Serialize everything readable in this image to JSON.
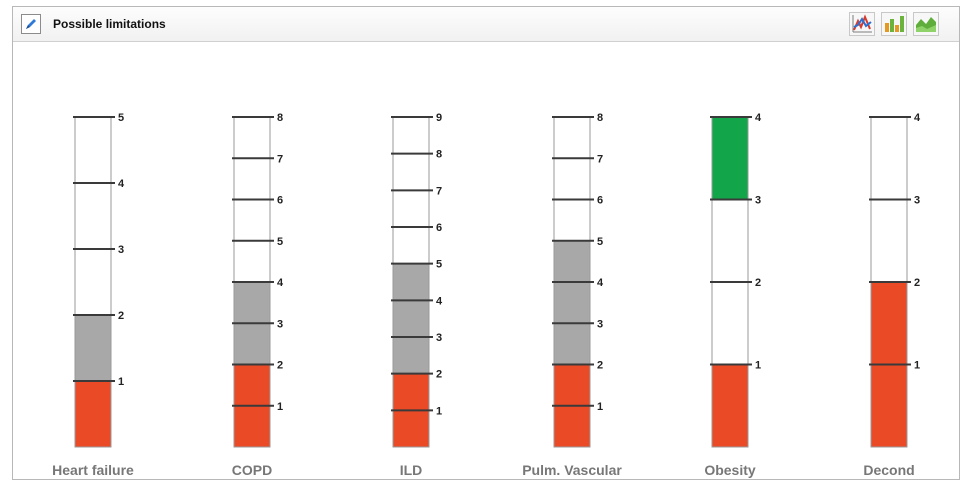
{
  "panel": {
    "title": "Possible limitations"
  },
  "toolbar": {
    "buttons": [
      {
        "name": "line-chart-button",
        "icon": "line-chart-icon"
      },
      {
        "name": "bar-chart-button",
        "icon": "bar-chart-icon"
      },
      {
        "name": "area-chart-button",
        "icon": "area-chart-icon"
      }
    ]
  },
  "colors": {
    "red": "#ea4b26",
    "gray": "#a8a8a8",
    "green": "#13a54a",
    "tick": "#3a3a3a",
    "outline": "#9a9a9a"
  },
  "chart_data": {
    "type": "bar",
    "categories": [
      "Heart failure",
      "COPD",
      "ILD",
      "Pulm. Vascular",
      "Obesity",
      "Decond"
    ],
    "columns": [
      {
        "label": "Heart failure",
        "max": 5,
        "ticks": [
          "1",
          "2",
          "3",
          "4",
          "5"
        ],
        "fills": [
          {
            "from": 0,
            "to": 1,
            "color": "red"
          },
          {
            "from": 1,
            "to": 2,
            "color": "gray"
          }
        ]
      },
      {
        "label": "COPD",
        "max": 8,
        "ticks": [
          "1",
          "2",
          "3",
          "4",
          "5",
          "6",
          "7",
          "8"
        ],
        "fills": [
          {
            "from": 0,
            "to": 2,
            "color": "red"
          },
          {
            "from": 2,
            "to": 4,
            "color": "gray"
          }
        ]
      },
      {
        "label": "ILD",
        "max": 9,
        "ticks": [
          "1",
          "2",
          "3",
          "4",
          "5",
          "6",
          "7",
          "8",
          "9"
        ],
        "fills": [
          {
            "from": 0,
            "to": 2,
            "color": "red"
          },
          {
            "from": 2,
            "to": 5,
            "color": "gray"
          }
        ]
      },
      {
        "label": "Pulm. Vascular",
        "max": 8,
        "ticks": [
          "1",
          "2",
          "3",
          "4",
          "5",
          "6",
          "7",
          "8"
        ],
        "fills": [
          {
            "from": 0,
            "to": 2,
            "color": "red"
          },
          {
            "from": 2,
            "to": 5,
            "color": "gray"
          }
        ]
      },
      {
        "label": "Obesity",
        "max": 4,
        "ticks": [
          "1",
          "2",
          "3",
          "4"
        ],
        "fills": [
          {
            "from": 0,
            "to": 1,
            "color": "red"
          },
          {
            "from": 3,
            "to": 4,
            "color": "green"
          }
        ]
      },
      {
        "label": "Decond",
        "max": 4,
        "ticks": [
          "1",
          "2",
          "3",
          "4"
        ],
        "fills": [
          {
            "from": 0,
            "to": 2,
            "color": "red"
          }
        ]
      }
    ]
  }
}
